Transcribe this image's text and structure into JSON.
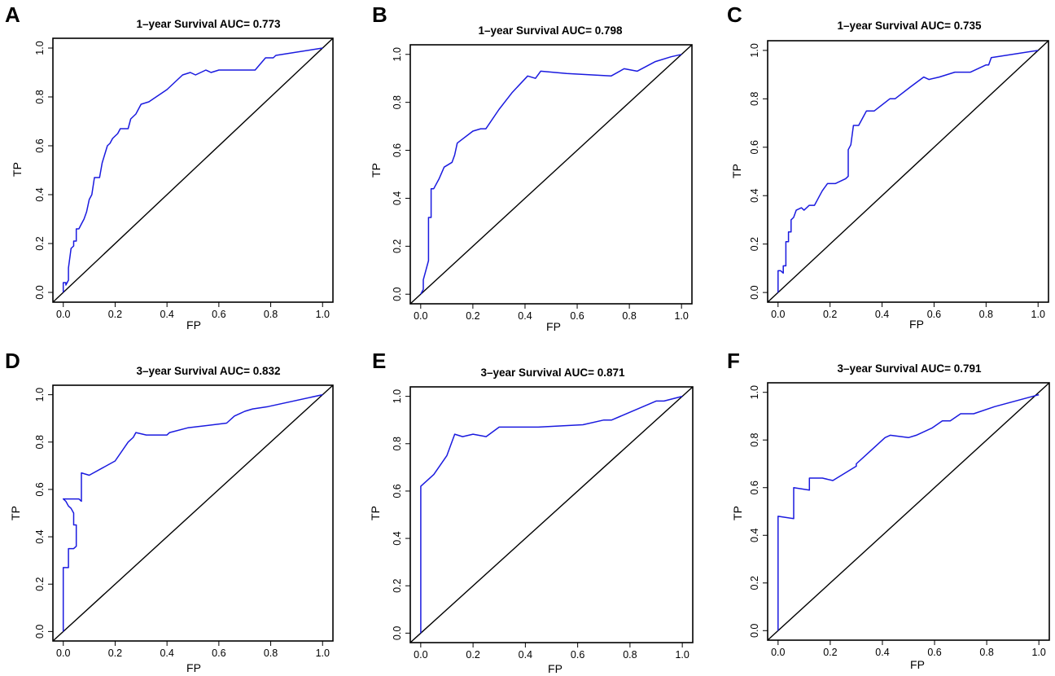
{
  "axis_ticks": [
    "0.0",
    "0.2",
    "0.4",
    "0.6",
    "0.8",
    "1.0"
  ],
  "colors": {
    "roc": "#1a1adf",
    "diagonal": "#000000",
    "axes": "#000000"
  },
  "chart_data": [
    {
      "type": "line",
      "panel": "A",
      "title": "1–year Survival AUC= 0.773",
      "xlabel": "FP",
      "ylabel": "TP",
      "xlim": [
        0,
        1
      ],
      "ylim": [
        0,
        1
      ],
      "reference_line": "diagonal",
      "series_name": "ROC",
      "points": [
        [
          0.0,
          0.0
        ],
        [
          0.0,
          0.04
        ],
        [
          0.01,
          0.04
        ],
        [
          0.01,
          0.03
        ],
        [
          0.02,
          0.05
        ],
        [
          0.02,
          0.1
        ],
        [
          0.03,
          0.18
        ],
        [
          0.04,
          0.19
        ],
        [
          0.04,
          0.21
        ],
        [
          0.05,
          0.21
        ],
        [
          0.05,
          0.26
        ],
        [
          0.06,
          0.26
        ],
        [
          0.07,
          0.28
        ],
        [
          0.08,
          0.3
        ],
        [
          0.09,
          0.33
        ],
        [
          0.1,
          0.38
        ],
        [
          0.11,
          0.4
        ],
        [
          0.12,
          0.47
        ],
        [
          0.14,
          0.47
        ],
        [
          0.15,
          0.53
        ],
        [
          0.17,
          0.6
        ],
        [
          0.18,
          0.61
        ],
        [
          0.19,
          0.63
        ],
        [
          0.21,
          0.65
        ],
        [
          0.22,
          0.67
        ],
        [
          0.25,
          0.67
        ],
        [
          0.26,
          0.71
        ],
        [
          0.28,
          0.73
        ],
        [
          0.3,
          0.77
        ],
        [
          0.33,
          0.78
        ],
        [
          0.4,
          0.83
        ],
        [
          0.46,
          0.89
        ],
        [
          0.49,
          0.9
        ],
        [
          0.51,
          0.89
        ],
        [
          0.55,
          0.91
        ],
        [
          0.57,
          0.9
        ],
        [
          0.6,
          0.91
        ],
        [
          0.74,
          0.91
        ],
        [
          0.78,
          0.96
        ],
        [
          0.81,
          0.96
        ],
        [
          0.82,
          0.97
        ],
        [
          1.0,
          1.0
        ]
      ]
    },
    {
      "type": "line",
      "panel": "B",
      "title": "1–year Survival AUC= 0.798",
      "xlabel": "FP",
      "ylabel": "TP",
      "xlim": [
        0,
        1
      ],
      "ylim": [
        0,
        1
      ],
      "reference_line": "diagonal",
      "series_name": "ROC",
      "points": [
        [
          0.0,
          0.0
        ],
        [
          0.01,
          0.02
        ],
        [
          0.01,
          0.06
        ],
        [
          0.02,
          0.1
        ],
        [
          0.03,
          0.14
        ],
        [
          0.03,
          0.32
        ],
        [
          0.04,
          0.32
        ],
        [
          0.04,
          0.44
        ],
        [
          0.05,
          0.44
        ],
        [
          0.07,
          0.48
        ],
        [
          0.09,
          0.53
        ],
        [
          0.12,
          0.55
        ],
        [
          0.13,
          0.58
        ],
        [
          0.14,
          0.63
        ],
        [
          0.2,
          0.68
        ],
        [
          0.23,
          0.69
        ],
        [
          0.25,
          0.69
        ],
        [
          0.3,
          0.77
        ],
        [
          0.35,
          0.84
        ],
        [
          0.41,
          0.91
        ],
        [
          0.44,
          0.9
        ],
        [
          0.46,
          0.93
        ],
        [
          0.56,
          0.92
        ],
        [
          0.73,
          0.91
        ],
        [
          0.78,
          0.94
        ],
        [
          0.83,
          0.93
        ],
        [
          0.9,
          0.97
        ],
        [
          0.96,
          0.99
        ],
        [
          1.0,
          1.0
        ]
      ]
    },
    {
      "type": "line",
      "panel": "C",
      "title": "1–year Survival AUC= 0.735",
      "xlabel": "FP",
      "ylabel": "TP",
      "xlim": [
        0,
        1
      ],
      "ylim": [
        0,
        1
      ],
      "reference_line": "diagonal",
      "series_name": "ROC",
      "points": [
        [
          0.0,
          0.0
        ],
        [
          0.0,
          0.09
        ],
        [
          0.01,
          0.09
        ],
        [
          0.02,
          0.08
        ],
        [
          0.02,
          0.11
        ],
        [
          0.03,
          0.11
        ],
        [
          0.03,
          0.21
        ],
        [
          0.04,
          0.21
        ],
        [
          0.04,
          0.25
        ],
        [
          0.05,
          0.25
        ],
        [
          0.05,
          0.3
        ],
        [
          0.06,
          0.31
        ],
        [
          0.07,
          0.34
        ],
        [
          0.09,
          0.35
        ],
        [
          0.1,
          0.34
        ],
        [
          0.12,
          0.36
        ],
        [
          0.14,
          0.36
        ],
        [
          0.15,
          0.38
        ],
        [
          0.16,
          0.4
        ],
        [
          0.17,
          0.42
        ],
        [
          0.19,
          0.45
        ],
        [
          0.22,
          0.45
        ],
        [
          0.24,
          0.46
        ],
        [
          0.26,
          0.47
        ],
        [
          0.27,
          0.48
        ],
        [
          0.27,
          0.59
        ],
        [
          0.28,
          0.61
        ],
        [
          0.29,
          0.69
        ],
        [
          0.31,
          0.69
        ],
        [
          0.33,
          0.73
        ],
        [
          0.34,
          0.75
        ],
        [
          0.37,
          0.75
        ],
        [
          0.43,
          0.8
        ],
        [
          0.45,
          0.8
        ],
        [
          0.51,
          0.85
        ],
        [
          0.56,
          0.89
        ],
        [
          0.58,
          0.88
        ],
        [
          0.62,
          0.89
        ],
        [
          0.68,
          0.91
        ],
        [
          0.74,
          0.91
        ],
        [
          0.8,
          0.94
        ],
        [
          0.81,
          0.94
        ],
        [
          0.82,
          0.97
        ],
        [
          1.0,
          1.0
        ]
      ]
    },
    {
      "type": "line",
      "panel": "D",
      "title": "3–year Survival AUC= 0.832",
      "xlabel": "FP",
      "ylabel": "TP",
      "xlim": [
        0,
        1
      ],
      "ylim": [
        0,
        1
      ],
      "reference_line": "diagonal",
      "series_name": "ROC",
      "points": [
        [
          0.0,
          0.0
        ],
        [
          0.0,
          0.27
        ],
        [
          0.02,
          0.27
        ],
        [
          0.02,
          0.35
        ],
        [
          0.04,
          0.35
        ],
        [
          0.05,
          0.36
        ],
        [
          0.05,
          0.45
        ],
        [
          0.04,
          0.45
        ],
        [
          0.04,
          0.5
        ],
        [
          0.03,
          0.52
        ],
        [
          0.02,
          0.53
        ],
        [
          0.01,
          0.55
        ],
        [
          0.0,
          0.56
        ],
        [
          0.02,
          0.56
        ],
        [
          0.04,
          0.56
        ],
        [
          0.06,
          0.56
        ],
        [
          0.07,
          0.55
        ],
        [
          0.07,
          0.67
        ],
        [
          0.1,
          0.66
        ],
        [
          0.2,
          0.72
        ],
        [
          0.25,
          0.8
        ],
        [
          0.27,
          0.82
        ],
        [
          0.28,
          0.84
        ],
        [
          0.32,
          0.83
        ],
        [
          0.4,
          0.83
        ],
        [
          0.41,
          0.84
        ],
        [
          0.48,
          0.86
        ],
        [
          0.63,
          0.88
        ],
        [
          0.66,
          0.91
        ],
        [
          0.68,
          0.92
        ],
        [
          0.7,
          0.93
        ],
        [
          0.73,
          0.94
        ],
        [
          0.79,
          0.95
        ],
        [
          1.0,
          1.0
        ]
      ]
    },
    {
      "type": "line",
      "panel": "E",
      "title": "3–year Survival AUC= 0.871",
      "xlabel": "FP",
      "ylabel": "TP",
      "xlim": [
        0,
        1
      ],
      "ylim": [
        0,
        1
      ],
      "reference_line": "diagonal",
      "series_name": "ROC",
      "points": [
        [
          0.0,
          0.0
        ],
        [
          0.0,
          0.62
        ],
        [
          0.05,
          0.67
        ],
        [
          0.1,
          0.75
        ],
        [
          0.13,
          0.84
        ],
        [
          0.16,
          0.83
        ],
        [
          0.2,
          0.84
        ],
        [
          0.25,
          0.83
        ],
        [
          0.3,
          0.87
        ],
        [
          0.45,
          0.87
        ],
        [
          0.62,
          0.88
        ],
        [
          0.7,
          0.9
        ],
        [
          0.73,
          0.9
        ],
        [
          0.9,
          0.98
        ],
        [
          0.93,
          0.98
        ],
        [
          1.0,
          1.0
        ]
      ]
    },
    {
      "type": "line",
      "panel": "F",
      "title": "3–year Survival AUC= 0.791",
      "xlabel": "FP",
      "ylabel": "TP",
      "xlim": [
        0,
        1
      ],
      "ylim": [
        0,
        1
      ],
      "reference_line": "diagonal",
      "series_name": "ROC",
      "points": [
        [
          0.0,
          0.0
        ],
        [
          0.0,
          0.48
        ],
        [
          0.06,
          0.47
        ],
        [
          0.06,
          0.6
        ],
        [
          0.12,
          0.59
        ],
        [
          0.12,
          0.64
        ],
        [
          0.17,
          0.64
        ],
        [
          0.21,
          0.63
        ],
        [
          0.3,
          0.69
        ],
        [
          0.3,
          0.7
        ],
        [
          0.35,
          0.75
        ],
        [
          0.41,
          0.81
        ],
        [
          0.43,
          0.82
        ],
        [
          0.5,
          0.81
        ],
        [
          0.53,
          0.82
        ],
        [
          0.59,
          0.85
        ],
        [
          0.63,
          0.88
        ],
        [
          0.66,
          0.88
        ],
        [
          0.7,
          0.91
        ],
        [
          0.75,
          0.91
        ],
        [
          0.83,
          0.94
        ],
        [
          1.0,
          0.99
        ]
      ]
    }
  ]
}
